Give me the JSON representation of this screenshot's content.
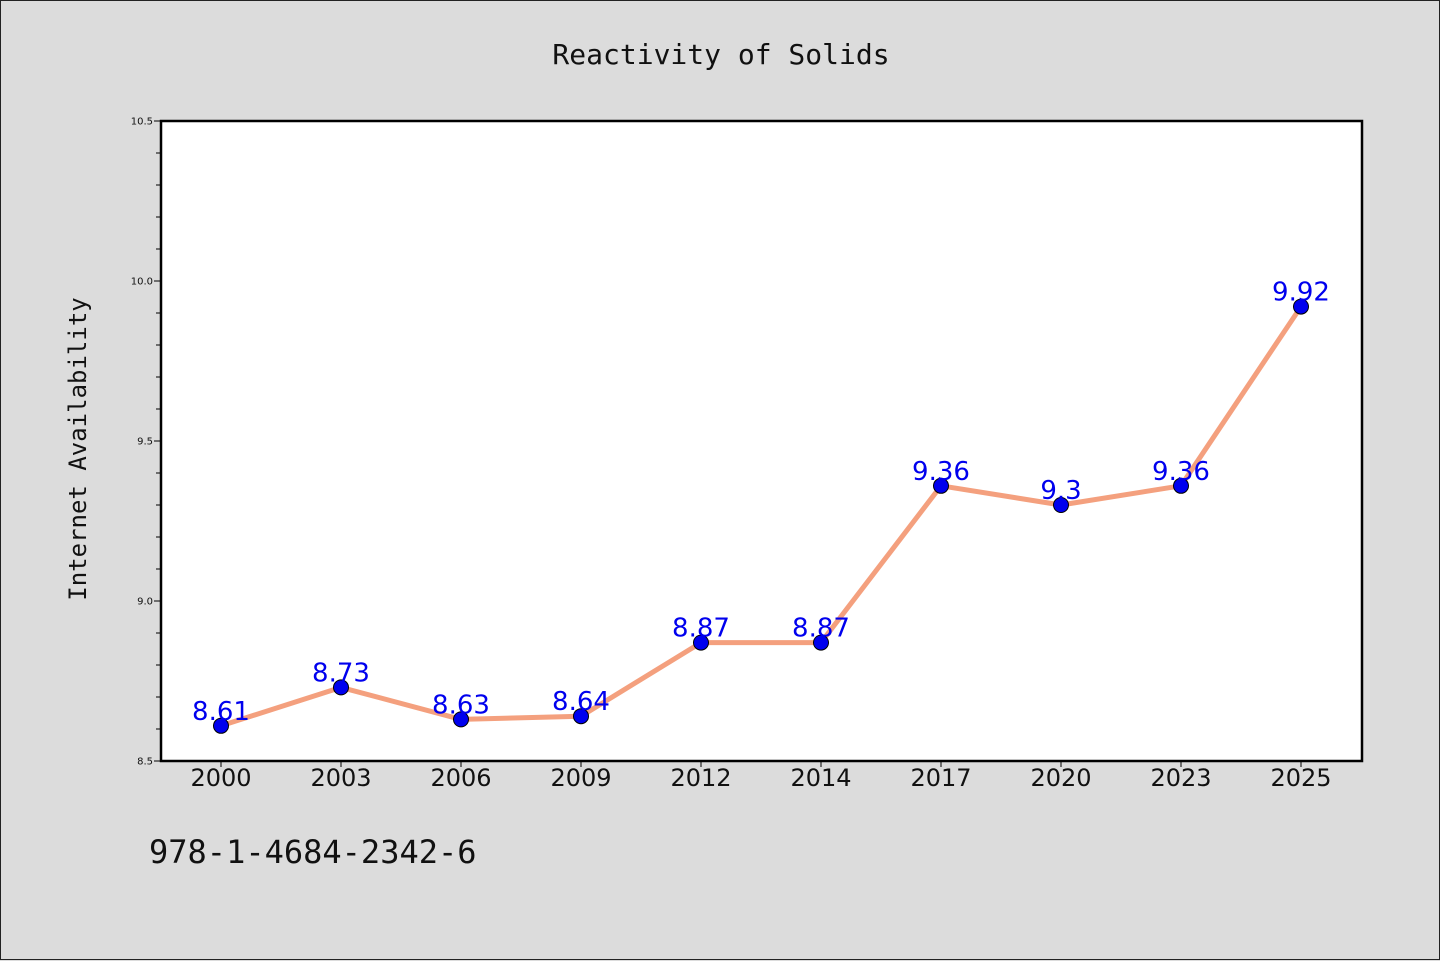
{
  "figure": {
    "footer_text": "978-1-4684-2342-6"
  },
  "chart_data": {
    "type": "line",
    "title": "Reactivity of Solids",
    "xlabel": "",
    "ylabel": "Internet Availability",
    "categories": [
      "2000",
      "2003",
      "2006",
      "2009",
      "2012",
      "2014",
      "2017",
      "2020",
      "2023",
      "2025"
    ],
    "series": [
      {
        "values": [
          8.61,
          8.73,
          8.63,
          8.64,
          8.87,
          8.87,
          9.36,
          9.3,
          9.36,
          9.92
        ],
        "data_labels": [
          "8.61",
          "8.73",
          "8.63",
          "8.64",
          "8.87",
          "8.87",
          "9.36",
          "9.3",
          "9.36",
          "9.92"
        ],
        "line_color": "#f4a07e",
        "marker_color": "#0000ee",
        "label_color": "#0000ee"
      }
    ],
    "ylim": [
      8.5,
      10.5
    ],
    "yticks": [
      8.5,
      9.0,
      9.5,
      10.0,
      10.5
    ],
    "ytick_labels": [
      "8.5",
      "9.0",
      "9.5",
      "10.0",
      "10.5"
    ],
    "grid": false,
    "legend": "none"
  }
}
